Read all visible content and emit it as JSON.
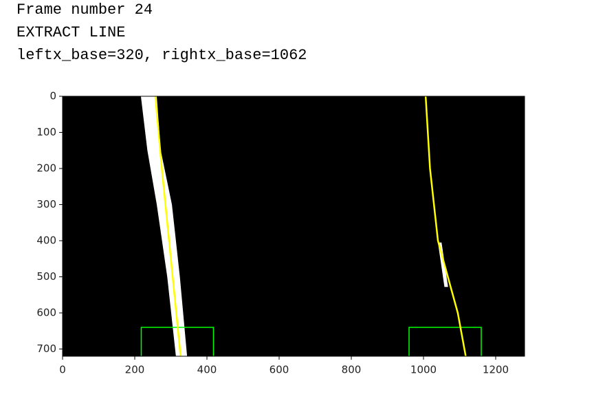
{
  "output_lines": [
    "Frame number 24",
    "EXTRACT LINE",
    "leftx_base=320, rightx_base=1062"
  ],
  "chart_data": {
    "type": "image",
    "xlim": [
      0,
      1280
    ],
    "ylim": [
      720,
      0
    ],
    "xticks": [
      0,
      200,
      400,
      600,
      800,
      1000,
      1200
    ],
    "yticks": [
      0,
      100,
      200,
      300,
      400,
      500,
      600,
      700
    ],
    "background": "#000000",
    "pixels": [
      {
        "color": "#ffffff",
        "x": [
          217,
          235,
          261,
          290,
          314,
          345,
          325,
          303,
          272,
          261
        ],
        "y": [
          0,
          150,
          300,
          500,
          720,
          720,
          500,
          300,
          150,
          0
        ]
      },
      {
        "color": "#ffffff",
        "x": [
          1040,
          1050,
          1068,
          1058
        ],
        "y": [
          405,
          405,
          528,
          528
        ]
      }
    ],
    "fits": [
      {
        "color": "#ffff00",
        "x": [
          257,
          275,
          295,
          315,
          327
        ],
        "y": [
          0,
          200,
          400,
          600,
          720
        ]
      },
      {
        "color": "#ffff00",
        "x": [
          1006,
          1018,
          1040,
          1095,
          1117
        ],
        "y": [
          0,
          200,
          400,
          600,
          720
        ]
      }
    ],
    "windows": [
      {
        "color": "#00ff00",
        "x": [
          218,
          418
        ],
        "y": [
          640,
          720
        ]
      },
      {
        "color": "#00ff00",
        "x": [
          960,
          1160
        ],
        "y": [
          640,
          720
        ]
      }
    ]
  }
}
